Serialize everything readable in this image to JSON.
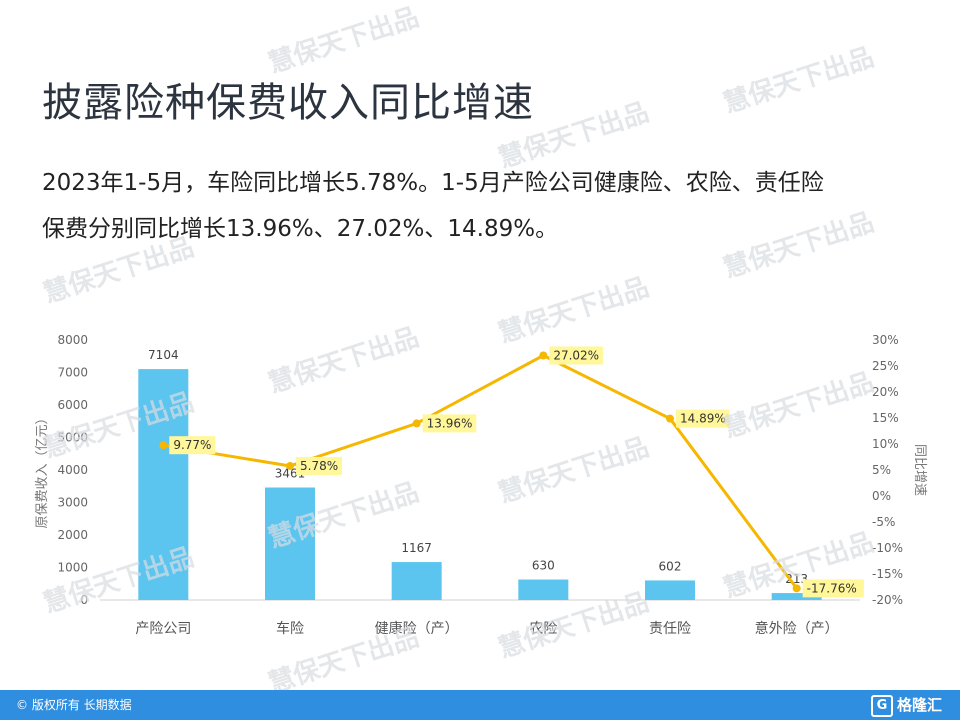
{
  "page": {
    "title": "披露险种保费收入同比增速",
    "summary_line1": "2023年1-5月，车险同比增长5.78%。1-5月产险公司健康险、农险、责任险",
    "summary_line2": "保费分别同比增长13.96%、27.02%、14.89%。",
    "watermark": "慧保天下出品",
    "footer_copyright": "© 版权所有 长期数据",
    "footer_logo": "格隆汇",
    "footer_logo_icon": "G"
  },
  "colors": {
    "bar": "#5bc5ef",
    "line": "#f5b700",
    "label_highlight": "#fff799",
    "footer": "#2f8ee0"
  },
  "chart_data": {
    "type": "bar",
    "categories": [
      "产险公司",
      "车险",
      "健康险（产）",
      "农险",
      "责任险",
      "意外险（产）"
    ],
    "series": [
      {
        "type": "bar",
        "axis": "left",
        "values": [
          7104,
          3461,
          1167,
          630,
          602,
          213
        ],
        "value_labels": [
          "7104",
          "3461",
          "1167",
          "630",
          "602",
          "213"
        ]
      },
      {
        "type": "line",
        "axis": "right",
        "values": [
          9.77,
          5.78,
          13.96,
          27.02,
          14.89,
          -17.76
        ],
        "value_labels": [
          "9.77%",
          "5.78%",
          "13.96%",
          "27.02%",
          "14.89%",
          "-17.76%"
        ]
      }
    ],
    "ylabel": "原保费收入（亿元）",
    "y2label": "同比增速",
    "ylim": [
      0,
      8000
    ],
    "y_ticks": [
      0,
      1000,
      2000,
      3000,
      4000,
      5000,
      6000,
      7000,
      8000
    ],
    "y2lim": [
      -20,
      30
    ],
    "y2_ticks": [
      -20,
      -15,
      -10,
      -5,
      0,
      5,
      10,
      15,
      20,
      25,
      30
    ],
    "y2_tick_labels": [
      "-20%",
      "-15%",
      "-10%",
      "-5%",
      "0%",
      "5%",
      "10%",
      "15%",
      "20%",
      "25%",
      "30%"
    ],
    "grid": false,
    "legend": "none"
  }
}
